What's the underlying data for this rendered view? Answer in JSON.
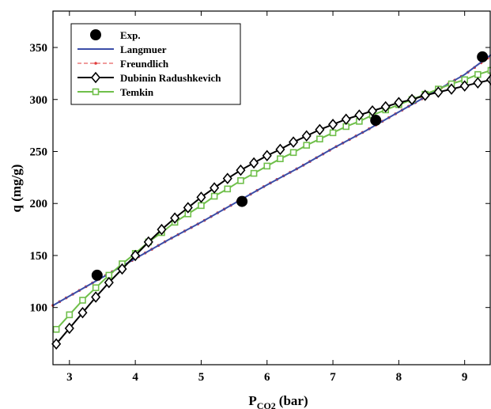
{
  "chart_data": {
    "type": "scatter",
    "xlabel": "P",
    "xlabel_sub": "CO2",
    "xlabel_unit": "(bar)",
    "ylabel": "q  (mg/g)",
    "xlim": [
      2.75,
      9.4
    ],
    "ylim": [
      45,
      385
    ],
    "x_ticks": [
      3,
      4,
      5,
      6,
      7,
      8,
      9
    ],
    "y_ticks": [
      100,
      150,
      200,
      250,
      300,
      350
    ],
    "x_tick_labels": [
      "3",
      "4",
      "5",
      "6",
      "7",
      "8",
      "9"
    ],
    "y_tick_labels": [
      "100",
      "150",
      "200",
      "250",
      "300",
      "350"
    ],
    "grid": false,
    "legend_position": "top-left",
    "series": [
      {
        "name": "Exp.",
        "kind": "points",
        "color": "#000000",
        "x": [
          3.42,
          5.62,
          7.65,
          9.27
        ],
        "y": [
          131,
          202,
          280,
          341
        ]
      },
      {
        "name": "Langmuer",
        "kind": "line",
        "color": "#3b4ea8",
        "x": [
          2.75,
          3.0,
          3.5,
          4.0,
          4.5,
          5.0,
          5.5,
          6.0,
          6.5,
          7.0,
          7.5,
          8.0,
          8.5,
          9.0,
          9.4
        ],
        "y": [
          102,
          111,
          129,
          147,
          165,
          182,
          200,
          218,
          235,
          253,
          270,
          288,
          306,
          324,
          343
        ]
      },
      {
        "name": "Freundlich",
        "kind": "dotted-line",
        "color": "#e03a3a",
        "x": [
          2.75,
          3.0,
          3.5,
          4.0,
          4.5,
          5.0,
          5.5,
          6.0,
          6.5,
          7.0,
          7.5,
          8.0,
          8.5,
          9.0,
          9.4
        ],
        "y": [
          102,
          111,
          129,
          147,
          165,
          182,
          200,
          218,
          235,
          253,
          270,
          288,
          306,
          324,
          342
        ]
      },
      {
        "name": "Dubinin Radushkevich",
        "kind": "line-diamond",
        "color": "#000000",
        "x": [
          2.8,
          3.0,
          3.2,
          3.4,
          3.6,
          3.8,
          4.0,
          4.2,
          4.4,
          4.6,
          4.8,
          5.0,
          5.2,
          5.4,
          5.6,
          5.8,
          6.0,
          6.2,
          6.4,
          6.6,
          6.8,
          7.0,
          7.2,
          7.4,
          7.6,
          7.8,
          8.0,
          8.2,
          8.4,
          8.6,
          8.8,
          9.0,
          9.2,
          9.4
        ],
        "y": [
          65,
          80,
          95,
          110,
          124,
          137,
          150,
          163,
          175,
          186,
          196,
          206,
          215,
          224,
          232,
          239,
          246,
          252,
          259,
          265,
          271,
          276,
          281,
          285,
          289,
          293,
          297,
          300,
          304,
          307,
          310,
          313,
          316,
          319
        ]
      },
      {
        "name": "Temkin",
        "kind": "line-square",
        "color": "#6fbf4a",
        "x": [
          2.8,
          3.0,
          3.2,
          3.4,
          3.6,
          3.8,
          4.0,
          4.2,
          4.4,
          4.6,
          4.8,
          5.0,
          5.2,
          5.4,
          5.6,
          5.8,
          6.0,
          6.2,
          6.4,
          6.6,
          6.8,
          7.0,
          7.2,
          7.4,
          7.6,
          7.8,
          8.0,
          8.2,
          8.4,
          8.6,
          8.8,
          9.0,
          9.2,
          9.4
        ],
        "y": [
          79,
          93,
          107,
          119,
          131,
          142,
          152,
          163,
          172,
          182,
          190,
          198,
          207,
          214,
          222,
          229,
          236,
          243,
          249,
          256,
          262,
          268,
          274,
          279,
          285,
          290,
          295,
          300,
          305,
          310,
          315,
          319,
          324,
          328
        ]
      }
    ]
  }
}
